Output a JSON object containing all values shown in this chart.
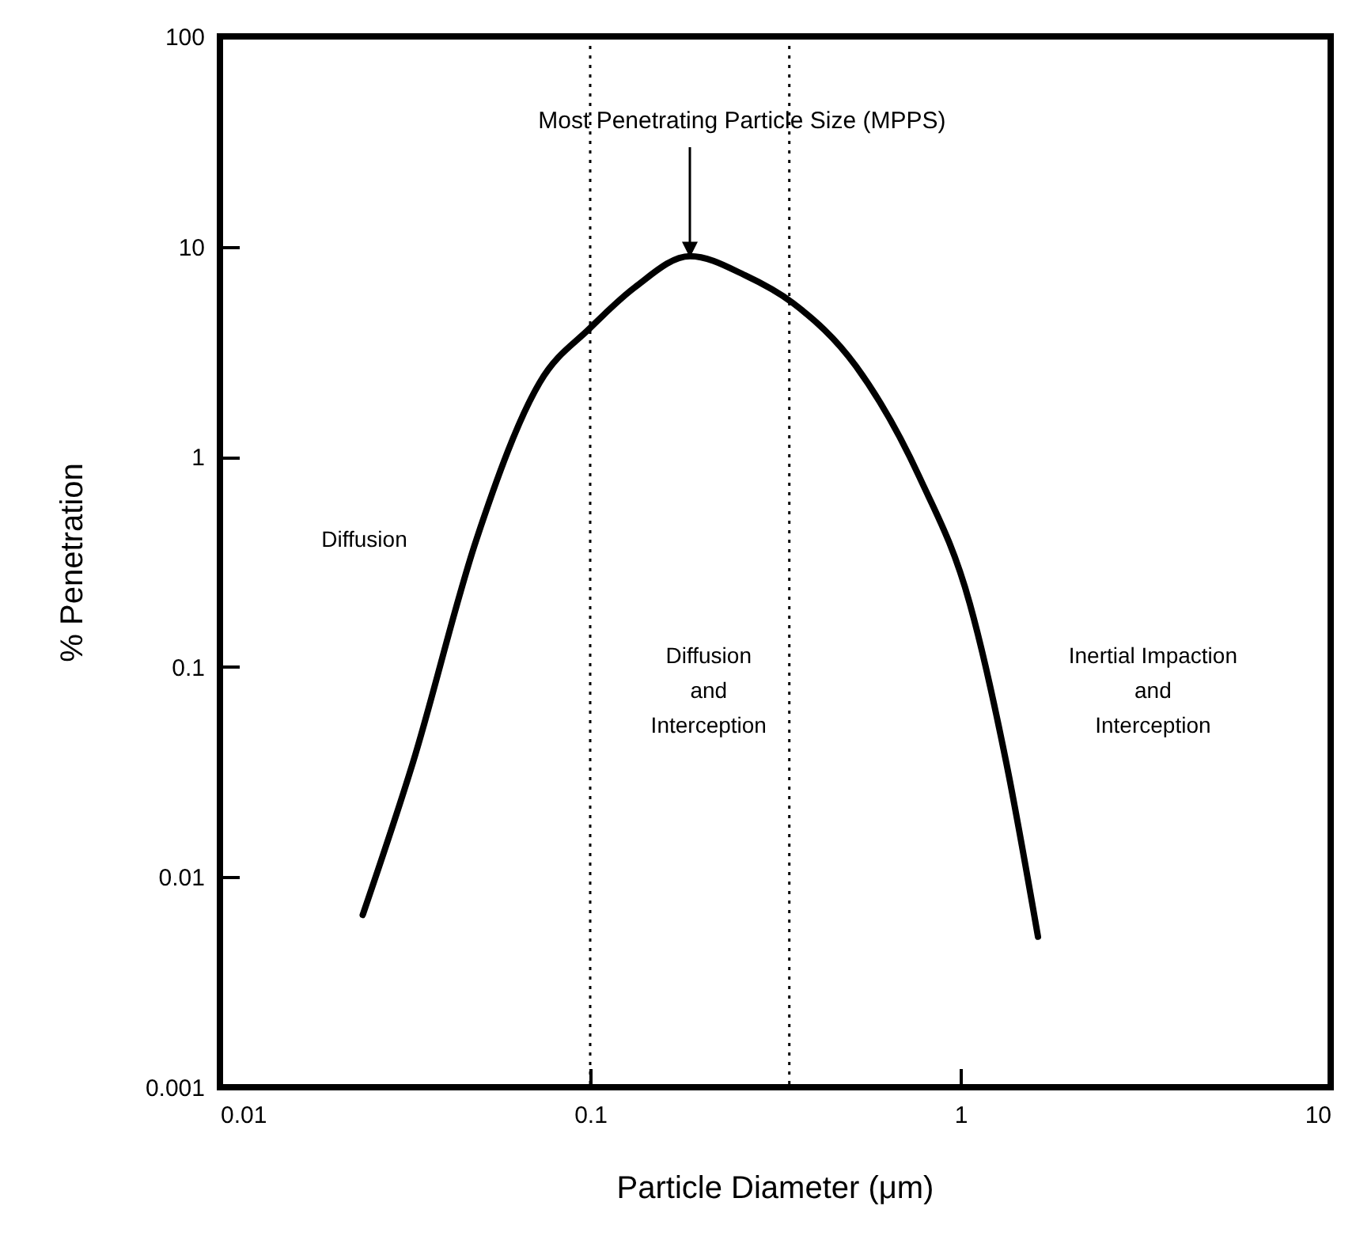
{
  "chart_data": {
    "type": "line",
    "xlabel": "Particle Diameter (μm)",
    "ylabel": "% Penetration",
    "log": "xy",
    "grid": false,
    "marker": "none",
    "line_style": "solid",
    "xlim": [
      0.01,
      10
    ],
    "xticks": [
      0.01,
      0.1,
      1,
      10
    ],
    "ylim": [
      0.001,
      100
    ],
    "yticks": [
      0.001,
      0.01,
      0.1,
      1,
      10,
      100
    ],
    "series": [
      {
        "color": "#000000",
        "x": [
          0.0243,
          0.0332,
          0.0492,
          0.073,
          0.1,
          0.132,
          0.186,
          0.262,
          0.352,
          0.522,
          0.775,
          1.06,
          1.33,
          1.62
        ],
        "values": [
          0.0066,
          0.035,
          0.4,
          2.25,
          4.1,
          6.4,
          9,
          7.3,
          5.4,
          2.7,
          0.8,
          0.2,
          0.035,
          0.0052
        ]
      }
    ],
    "ref_lines": [
      {
        "axis": "x",
        "value": 0.1,
        "line_style": "dotted"
      },
      {
        "axis": "x",
        "value": 0.345,
        "line_style": "dotted"
      }
    ],
    "annotations": [
      "Most Penetrating Particle Size (MPPS)",
      "Diffusion",
      "Diffusion\nand\nInterception",
      "Inertial Impaction\nand\nInterception"
    ]
  }
}
